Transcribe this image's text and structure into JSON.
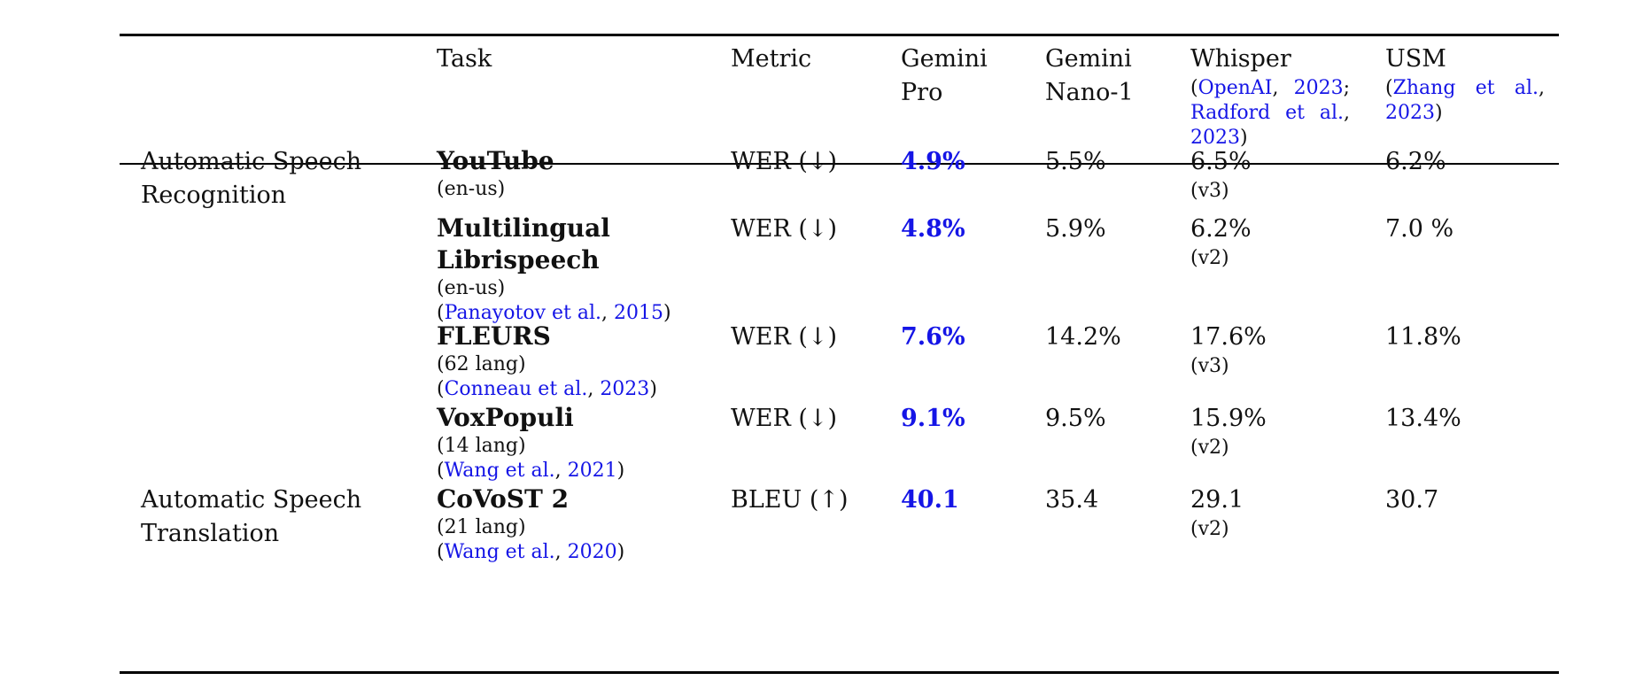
{
  "header": {
    "task": "Task",
    "metric": "Metric",
    "gemini_pro": [
      "Gemini",
      "Pro"
    ],
    "gemini_nano": [
      "Gemini",
      "Nano-1"
    ],
    "whisper": {
      "name": "Whisper",
      "cite": {
        "open": "(",
        "author1": "OpenAI",
        "sep1": ", ",
        "year1": "2023",
        "semi": ";",
        "author2": "Radford et al.",
        "sep2": ",",
        "year2": "2023",
        "close": ")"
      }
    },
    "usm": {
      "name": "USM",
      "cite": {
        "open": "(",
        "author": "Zhang et al.",
        "sep": ",",
        "year": "2023",
        "close": ")"
      }
    }
  },
  "categories": {
    "asr": [
      "Automatic Speech",
      "Recognition"
    ],
    "ast": [
      "Automatic Speech",
      "Translation"
    ]
  },
  "rows": [
    {
      "task": [
        "YouTube"
      ],
      "sub": "(en-us)",
      "metric": "WER (↓)",
      "pro": "4.9%",
      "nano": "5.5%",
      "whisper": "6.5%",
      "whisper_ver": "(v3)",
      "usm": "6.2%"
    },
    {
      "task": [
        "Multilingual",
        "Librispeech"
      ],
      "sub": "(en-us)",
      "cite": {
        "open": "(",
        "author": "Panayotov et al.",
        "sep": ", ",
        "year": "2015",
        "close": ")"
      },
      "metric": "WER (↓)",
      "pro": "4.8%",
      "nano": "5.9%",
      "whisper": "6.2%",
      "whisper_ver": "(v2)",
      "usm": "7.0 %"
    },
    {
      "task": [
        "FLEURS"
      ],
      "sub": "(62 lang)",
      "cite": {
        "open": "(",
        "author": "Conneau et al.",
        "sep": ", ",
        "year": "2023",
        "close": ")"
      },
      "metric": "WER (↓)",
      "pro": "7.6%",
      "nano": "14.2%",
      "whisper": "17.6%",
      "whisper_ver": "(v3)",
      "usm": "11.8%"
    },
    {
      "task": [
        "VoxPopuli"
      ],
      "sub": "(14 lang)",
      "cite": {
        "open": "(",
        "author": "Wang et al.",
        "sep": ", ",
        "year": "2021",
        "close": ")"
      },
      "metric": "WER (↓)",
      "pro": "9.1%",
      "nano": "9.5%",
      "whisper": "15.9%",
      "whisper_ver": "(v2)",
      "usm": "13.4%"
    },
    {
      "task": [
        "CoVoST 2"
      ],
      "sub": "(21 lang)",
      "cite": {
        "open": "(",
        "author": "Wang et al.",
        "sep": ", ",
        "year": "2020",
        "close": ")"
      },
      "metric": "BLEU (↑)",
      "pro": "40.1",
      "nano": "35.4",
      "whisper": "29.1",
      "whisper_ver": "(v2)",
      "usm": "30.7"
    }
  ],
  "colors": {
    "link": "#1515e6",
    "best": "#1515e6",
    "rule": "#000000"
  }
}
